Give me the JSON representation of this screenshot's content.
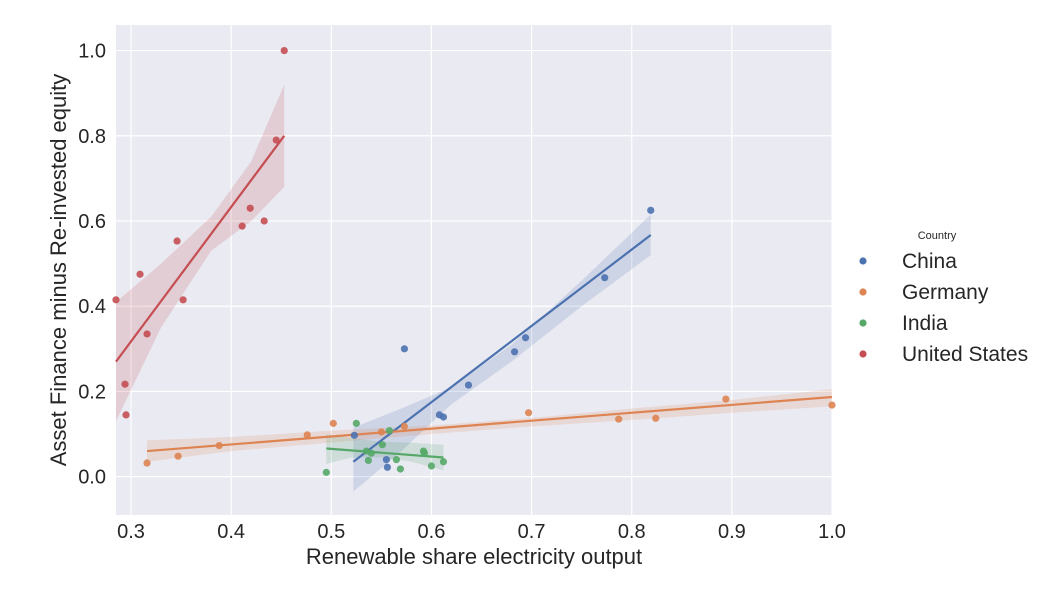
{
  "chart_data": {
    "type": "scatter",
    "xlabel": "Renewable share electricity output",
    "ylabel": "Asset Finance minus Re-invested equity",
    "xlim": [
      0.285,
      1.0
    ],
    "ylim": [
      -0.09,
      1.06
    ],
    "xticks": [
      "0.3",
      "0.4",
      "0.5",
      "0.6",
      "0.7",
      "0.8",
      "0.9",
      "1.0"
    ],
    "yticks": [
      "0.0",
      "0.2",
      "0.4",
      "0.6",
      "0.8",
      "1.0"
    ],
    "grid": true,
    "background": "#eaeaf2",
    "legend": {
      "title": "Country",
      "placement": "right"
    },
    "series": [
      {
        "name": "China",
        "color": "#4c72b0",
        "points": [
          [
            0.523,
            0.097
          ],
          [
            0.555,
            0.04
          ],
          [
            0.556,
            0.022
          ],
          [
            0.573,
            0.3
          ],
          [
            0.608,
            0.145
          ],
          [
            0.612,
            0.14
          ],
          [
            0.637,
            0.215
          ],
          [
            0.683,
            0.293
          ],
          [
            0.694,
            0.326
          ],
          [
            0.773,
            0.467
          ],
          [
            0.819,
            0.625
          ]
        ],
        "fit": [
          [
            0.522,
            0.035
          ],
          [
            0.819,
            0.567
          ]
        ],
        "band_upper": [
          [
            0.522,
            0.115
          ],
          [
            0.57,
            0.16
          ],
          [
            0.62,
            0.21
          ],
          [
            0.68,
            0.31
          ],
          [
            0.75,
            0.46
          ],
          [
            0.819,
            0.615
          ]
        ],
        "band_lower": [
          [
            0.522,
            -0.035
          ],
          [
            0.57,
            0.06
          ],
          [
            0.62,
            0.17
          ],
          [
            0.68,
            0.27
          ],
          [
            0.75,
            0.4
          ],
          [
            0.819,
            0.52
          ]
        ]
      },
      {
        "name": "Germany",
        "color": "#dd8452",
        "points": [
          [
            0.316,
            0.032
          ],
          [
            0.347,
            0.048
          ],
          [
            0.388,
            0.073
          ],
          [
            0.476,
            0.098
          ],
          [
            0.502,
            0.125
          ],
          [
            0.55,
            0.105
          ],
          [
            0.573,
            0.118
          ],
          [
            0.697,
            0.15
          ],
          [
            0.787,
            0.135
          ],
          [
            0.824,
            0.137
          ],
          [
            0.894,
            0.182
          ],
          [
            1.0,
            0.168
          ]
        ],
        "fit": [
          [
            0.316,
            0.06
          ],
          [
            1.0,
            0.187
          ]
        ],
        "band_upper": [
          [
            0.316,
            0.085
          ],
          [
            0.4,
            0.093
          ],
          [
            0.5,
            0.108
          ],
          [
            0.6,
            0.12
          ],
          [
            0.7,
            0.138
          ],
          [
            0.8,
            0.16
          ],
          [
            0.9,
            0.18
          ],
          [
            1.0,
            0.205
          ]
        ],
        "band_lower": [
          [
            0.316,
            0.035
          ],
          [
            0.4,
            0.06
          ],
          [
            0.5,
            0.08
          ],
          [
            0.6,
            0.1
          ],
          [
            0.7,
            0.118
          ],
          [
            0.8,
            0.133
          ],
          [
            0.9,
            0.15
          ],
          [
            1.0,
            0.165
          ]
        ]
      },
      {
        "name": "India",
        "color": "#55a868",
        "points": [
          [
            0.495,
            0.01
          ],
          [
            0.525,
            0.125
          ],
          [
            0.535,
            0.06
          ],
          [
            0.537,
            0.038
          ],
          [
            0.54,
            0.055
          ],
          [
            0.551,
            0.075
          ],
          [
            0.558,
            0.108
          ],
          [
            0.565,
            0.04
          ],
          [
            0.569,
            0.018
          ],
          [
            0.592,
            0.06
          ],
          [
            0.593,
            0.055
          ],
          [
            0.6,
            0.025
          ],
          [
            0.612,
            0.035
          ]
        ],
        "fit": [
          [
            0.495,
            0.066
          ],
          [
            0.612,
            0.045
          ]
        ],
        "band_upper": [
          [
            0.495,
            0.1
          ],
          [
            0.52,
            0.09
          ],
          [
            0.55,
            0.082
          ],
          [
            0.58,
            0.08
          ],
          [
            0.612,
            0.075
          ]
        ],
        "band_lower": [
          [
            0.495,
            0.03
          ],
          [
            0.52,
            0.045
          ],
          [
            0.55,
            0.045
          ],
          [
            0.58,
            0.035
          ],
          [
            0.612,
            0.015
          ]
        ]
      },
      {
        "name": "United States",
        "color": "#c44e52",
        "points": [
          [
            0.285,
            0.415
          ],
          [
            0.294,
            0.217
          ],
          [
            0.295,
            0.145
          ],
          [
            0.309,
            0.475
          ],
          [
            0.316,
            0.335
          ],
          [
            0.346,
            0.553
          ],
          [
            0.352,
            0.415
          ],
          [
            0.411,
            0.588
          ],
          [
            0.419,
            0.63
          ],
          [
            0.433,
            0.6
          ],
          [
            0.445,
            0.79
          ],
          [
            0.453,
            1.0
          ]
        ],
        "fit": [
          [
            0.285,
            0.27
          ],
          [
            0.453,
            0.8
          ]
        ],
        "band_upper": [
          [
            0.285,
            0.41
          ],
          [
            0.33,
            0.5
          ],
          [
            0.38,
            0.61
          ],
          [
            0.42,
            0.74
          ],
          [
            0.453,
            0.92
          ]
        ],
        "band_lower": [
          [
            0.285,
            0.13
          ],
          [
            0.33,
            0.35
          ],
          [
            0.38,
            0.53
          ],
          [
            0.42,
            0.6
          ],
          [
            0.453,
            0.68
          ]
        ]
      }
    ]
  }
}
